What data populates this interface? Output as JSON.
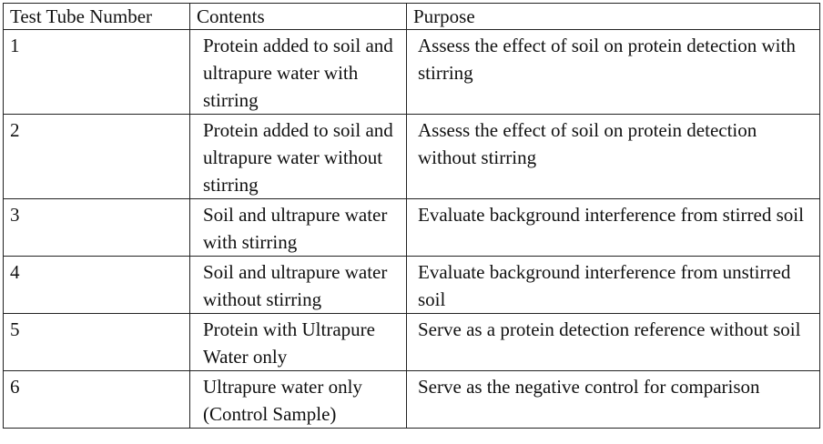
{
  "table": {
    "headers": [
      "Test Tube Number",
      "Contents",
      "Purpose"
    ],
    "rows": [
      {
        "number": "1",
        "contents": "Protein added to soil and ultrapure water with stirring",
        "purpose": "Assess the effect of soil on protein detection with stirring"
      },
      {
        "number": "2",
        "contents": "Protein added to soil and ultrapure water without stirring",
        "purpose": "Assess the effect of soil on protein detection without stirring"
      },
      {
        "number": "3",
        "contents": "Soil and ultrapure water with stirring",
        "purpose": "Evaluate background interference from stirred soil"
      },
      {
        "number": "4",
        "contents": "Soil and ultrapure water without stirring",
        "purpose": "Evaluate background interference from unstirred soil"
      },
      {
        "number": "5",
        "contents": "Protein with Ultrapure Water only",
        "purpose": "Serve as a protein detection reference without soil"
      },
      {
        "number": "6",
        "contents": "Ultrapure water only (Control Sample)",
        "purpose": "Serve as the negative control for comparison"
      }
    ]
  }
}
